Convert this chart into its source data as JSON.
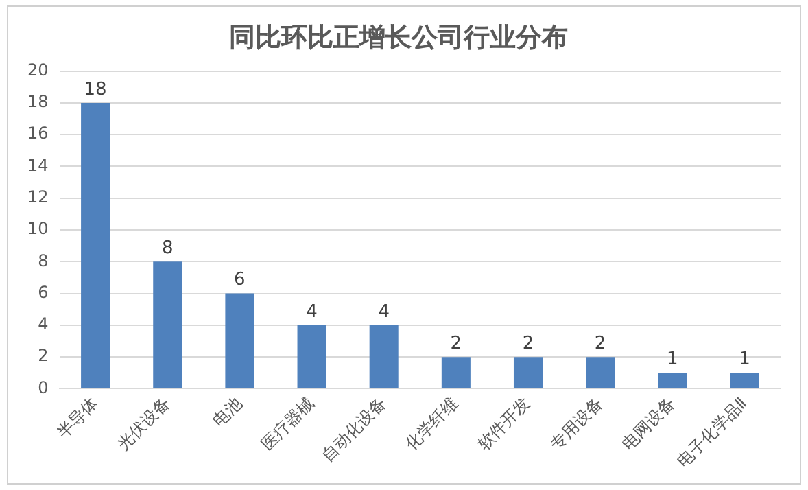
{
  "chart_data": {
    "type": "bar",
    "title": "同比环比正增长公司行业分布",
    "categories": [
      "半导体",
      "光伏设备",
      "电池",
      "医疗器械",
      "自动化设备",
      "化学纤维",
      "软件开发",
      "专用设备",
      "电网设备",
      "电子化学品Ⅱ"
    ],
    "values": [
      18,
      8,
      6,
      4,
      4,
      2,
      2,
      2,
      1,
      1
    ],
    "color": "#4f81bd",
    "ylim": [
      0,
      20
    ],
    "yticks": [
      0,
      2,
      4,
      6,
      8,
      10,
      12,
      14,
      16,
      18,
      20
    ],
    "grid": "y",
    "data_labels": true
  }
}
